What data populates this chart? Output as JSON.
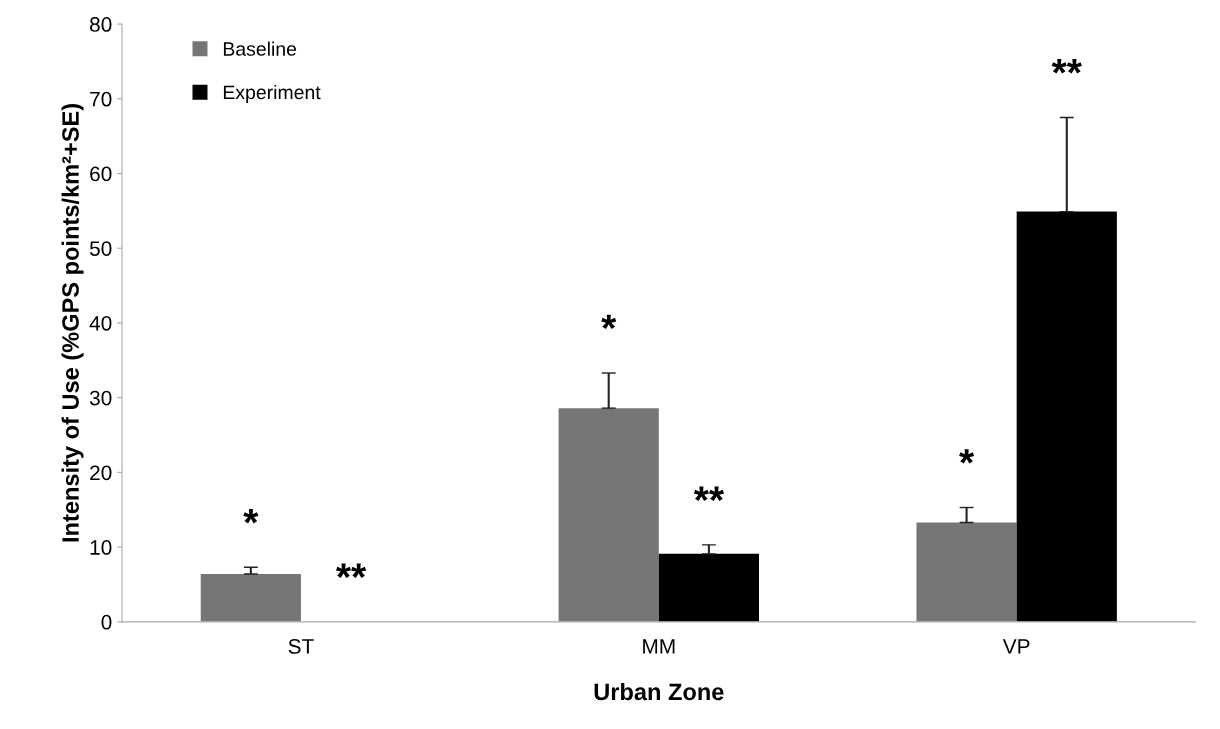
{
  "chart_data": {
    "type": "bar",
    "xlabel": "Urban Zone",
    "ylabel": "Intensity of Use (%GPS points/km²+SE)",
    "categories": [
      "ST",
      "MM",
      "VP"
    ],
    "series": [
      {
        "name": "Baseline",
        "color": "#767676",
        "values": [
          6.4,
          28.6,
          13.3
        ],
        "errors": [
          0.9,
          4.7,
          2.0
        ]
      },
      {
        "name": "Experiment",
        "color": "#000000",
        "values": [
          0,
          9.1,
          54.9
        ],
        "errors": [
          null,
          1.2,
          12.6
        ]
      }
    ],
    "ylim": [
      0,
      80
    ],
    "yticks": [
      0,
      10,
      20,
      30,
      40,
      50,
      60,
      70,
      80
    ],
    "grid": false,
    "legend": "top left",
    "annotations": [
      "*",
      "**",
      "*",
      "**",
      "*",
      "**"
    ]
  }
}
